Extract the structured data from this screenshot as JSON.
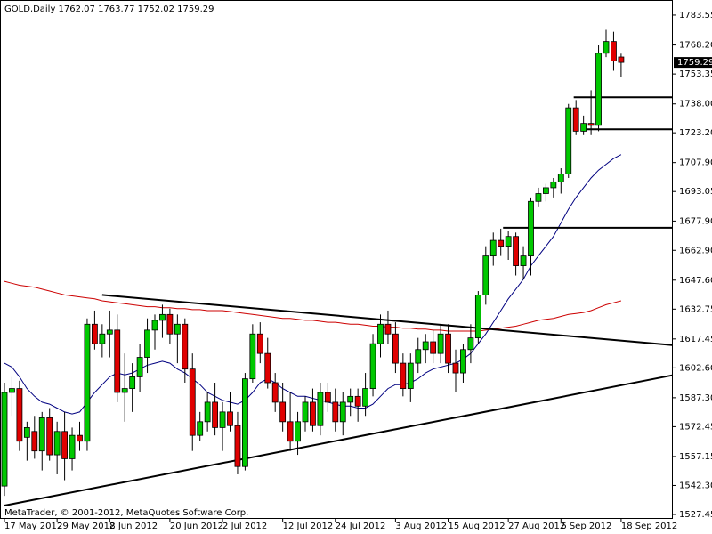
{
  "chart_data": {
    "type": "candlestick",
    "title": "GOLD,Daily  1762.07 1763.77 1752.02 1759.29",
    "footer": "MetaTrader, © 2001-2012, MetaQuotes Software Corp.",
    "last_price": 1759.29,
    "categories": [
      "17 May 2012",
      null,
      null,
      null,
      null,
      null,
      null,
      "29 May 2012",
      null,
      null,
      null,
      null,
      null,
      null,
      "8 Jun 2012",
      null,
      null,
      null,
      null,
      null,
      null,
      null,
      "20 Jun 2012",
      null,
      null,
      null,
      null,
      null,
      null,
      "2 Jul 2012",
      null,
      null,
      null,
      null,
      null,
      null,
      null,
      "12 Jul 2012",
      null,
      null,
      null,
      null,
      null,
      null,
      "24 Jul 2012",
      null,
      null,
      null,
      null,
      null,
      null,
      null,
      "3 Aug 2012",
      null,
      null,
      null,
      null,
      null,
      null,
      "15 Aug 2012",
      null,
      null,
      null,
      null,
      null,
      null,
      null,
      "27 Aug 2012",
      null,
      null,
      null,
      null,
      null,
      null,
      "6 Sep 2012",
      null,
      null,
      null,
      null,
      null,
      null,
      null,
      "18 Sep 2012"
    ],
    "open": [
      1542,
      1590,
      1592,
      1567,
      1570,
      1560,
      1577,
      1558,
      1570,
      1556,
      1568,
      1565,
      1625,
      1615,
      1620,
      1622,
      1590,
      1592,
      1598,
      1608,
      1622,
      1627,
      1630,
      1620,
      1625,
      1602,
      1568,
      1575,
      1585,
      1572,
      1580,
      1573,
      1552,
      1597,
      1620,
      1610,
      1595,
      1585,
      1575,
      1565,
      1575,
      1585,
      1573,
      1590,
      1585,
      1575,
      1585,
      1588,
      1583,
      1592,
      1615,
      1625,
      1620,
      1605,
      1592,
      1605,
      1612,
      1616,
      1610,
      1620,
      1605,
      1600,
      1612,
      1618,
      1640,
      1660,
      1668,
      1665,
      1670,
      1655,
      1660,
      1688,
      1692,
      1695,
      1698,
      1702,
      1736,
      1724,
      1728,
      1727,
      1764,
      1770,
      1762.07
    ],
    "high": [
      1595,
      1598,
      1596,
      1575,
      1578,
      1580,
      1582,
      1575,
      1580,
      1572,
      1575,
      1628,
      1632,
      1625,
      1632,
      1630,
      1610,
      1605,
      1615,
      1628,
      1630,
      1635,
      1633,
      1630,
      1628,
      1610,
      1580,
      1590,
      1595,
      1585,
      1590,
      1580,
      1600,
      1625,
      1626,
      1618,
      1600,
      1595,
      1590,
      1580,
      1588,
      1592,
      1595,
      1595,
      1592,
      1590,
      1592,
      1592,
      1600,
      1620,
      1630,
      1632,
      1626,
      1610,
      1610,
      1618,
      1620,
      1622,
      1625,
      1625,
      1612,
      1615,
      1625,
      1642,
      1665,
      1672,
      1674,
      1673,
      1672,
      1665,
      1690,
      1695,
      1697,
      1700,
      1705,
      1738,
      1740,
      1732,
      1745,
      1768,
      1776,
      1775,
      1763.77
    ],
    "low": [
      1537,
      1578,
      1560,
      1555,
      1556,
      1550,
      1555,
      1548,
      1545,
      1550,
      1560,
      1560,
      1612,
      1608,
      1608,
      1585,
      1575,
      1580,
      1590,
      1600,
      1612,
      1618,
      1615,
      1605,
      1595,
      1560,
      1565,
      1570,
      1568,
      1560,
      1570,
      1548,
      1550,
      1595,
      1605,
      1592,
      1580,
      1570,
      1560,
      1558,
      1570,
      1570,
      1568,
      1580,
      1570,
      1568,
      1578,
      1575,
      1578,
      1588,
      1608,
      1615,
      1600,
      1588,
      1585,
      1600,
      1605,
      1605,
      1605,
      1600,
      1590,
      1595,
      1605,
      1615,
      1635,
      1655,
      1660,
      1658,
      1650,
      1648,
      1650,
      1685,
      1688,
      1690,
      1692,
      1700,
      1722,
      1722,
      1722,
      1724,
      1762,
      1755,
      1752.02
    ],
    "close": [
      1590,
      1592,
      1565,
      1572,
      1560,
      1577,
      1558,
      1570,
      1556,
      1568,
      1565,
      1625,
      1615,
      1620,
      1622,
      1590,
      1592,
      1598,
      1608,
      1622,
      1627,
      1630,
      1620,
      1625,
      1602,
      1568,
      1575,
      1585,
      1572,
      1580,
      1573,
      1552,
      1597,
      1620,
      1610,
      1595,
      1585,
      1575,
      1565,
      1575,
      1585,
      1573,
      1590,
      1585,
      1575,
      1585,
      1588,
      1583,
      1592,
      1615,
      1625,
      1620,
      1605,
      1592,
      1605,
      1612,
      1616,
      1610,
      1620,
      1605,
      1600,
      1612,
      1618,
      1640,
      1660,
      1668,
      1665,
      1670,
      1655,
      1660,
      1688,
      1692,
      1695,
      1698,
      1702,
      1736,
      1724,
      1728,
      1727,
      1764,
      1770,
      1760,
      1759.29
    ],
    "up_color": "#00c800",
    "down_color": "#e00000",
    "moving_averages": [
      {
        "color": "#000080",
        "values": [
          1605,
          1603,
          1598,
          1592,
          1588,
          1585,
          1584,
          1582,
          1580,
          1579,
          1580,
          1585,
          1590,
          1594,
          1598,
          1600,
          1599,
          1600,
          1602,
          1604,
          1605,
          1606,
          1605,
          1602,
          1600,
          1597,
          1594,
          1590,
          1588,
          1586,
          1585,
          1584,
          1586,
          1590,
          1595,
          1597,
          1595,
          1592,
          1590,
          1588,
          1588,
          1587,
          1586,
          1585,
          1584,
          1583,
          1583,
          1582,
          1582,
          1584,
          1588,
          1592,
          1594,
          1594,
          1595,
          1597,
          1600,
          1602,
          1603,
          1604,
          1605,
          1607,
          1610,
          1615,
          1620,
          1626,
          1632,
          1638,
          1643,
          1648,
          1655,
          1660,
          1665,
          1670,
          1677,
          1684,
          1690,
          1695,
          1700,
          1704,
          1707,
          1710,
          1712
        ]
      },
      {
        "color": "#cc0000",
        "values": [
          1647,
          1646,
          1645,
          1644.5,
          1644,
          1643,
          1642,
          1641,
          1640,
          1639.5,
          1639,
          1638.5,
          1638,
          1637,
          1636.5,
          1636,
          1635.5,
          1635,
          1634.5,
          1634,
          1634,
          1633.5,
          1633.5,
          1633,
          1633,
          1632.5,
          1632.5,
          1632,
          1632,
          1632,
          1631.5,
          1631,
          1630.5,
          1630,
          1629.5,
          1629,
          1628.5,
          1628,
          1628,
          1627.5,
          1627,
          1627,
          1626.5,
          1626,
          1626,
          1625.5,
          1625,
          1625,
          1624.5,
          1624,
          1624,
          1623.5,
          1623.5,
          1623,
          1623,
          1622.5,
          1622.5,
          1622,
          1622,
          1621.5,
          1621.5,
          1621.5,
          1621.5,
          1621.5,
          1622,
          1622.5,
          1623,
          1623.5,
          1624,
          1625,
          1626,
          1627,
          1627.5,
          1628,
          1629,
          1630,
          1630.5,
          1631,
          1632,
          1633.5,
          1635,
          1636,
          1637
        ]
      }
    ],
    "trendlines": [
      {
        "x": [
          13,
          88.8
        ],
        "y": [
          1640,
          1614.3
        ]
      },
      {
        "x": [
          0,
          88.8
        ],
        "y": [
          1532,
          1598.8
        ]
      },
      {
        "x": [
          66.3,
          88.8
        ],
        "y": [
          1674.5,
          1674.5
        ]
      },
      {
        "x": [
          77.2,
          88.8
        ],
        "y": [
          1725,
          1725
        ]
      },
      {
        "x": [
          75.7,
          88.8
        ],
        "y": [
          1741.4,
          1741.4
        ]
      }
    ],
    "ylim": [
      1525.62,
      1790.83
    ],
    "yticks": [
      1783.55,
      {
        "value": 1768.2,
        "label": "1768.20"
      },
      1753.35,
      {
        "value": 1738,
        "label": "1738.00"
      },
      {
        "value": 1723.2,
        "label": "1723.20"
      },
      {
        "value": 1707.9,
        "label": "1707.90"
      },
      1693.05,
      {
        "value": 1677.9,
        "label": "1677.90"
      },
      {
        "value": 1662.9,
        "label": "1662.90"
      },
      {
        "value": 1647.6,
        "label": "1647.60"
      },
      1632.75,
      1617.45,
      {
        "value": 1602.6,
        "label": "1602.60"
      },
      {
        "value": 1587.3,
        "label": "1587.30"
      },
      1572.45,
      1557.15,
      {
        "value": 1542.3,
        "label": "1542.30"
      },
      1527.45
    ]
  }
}
